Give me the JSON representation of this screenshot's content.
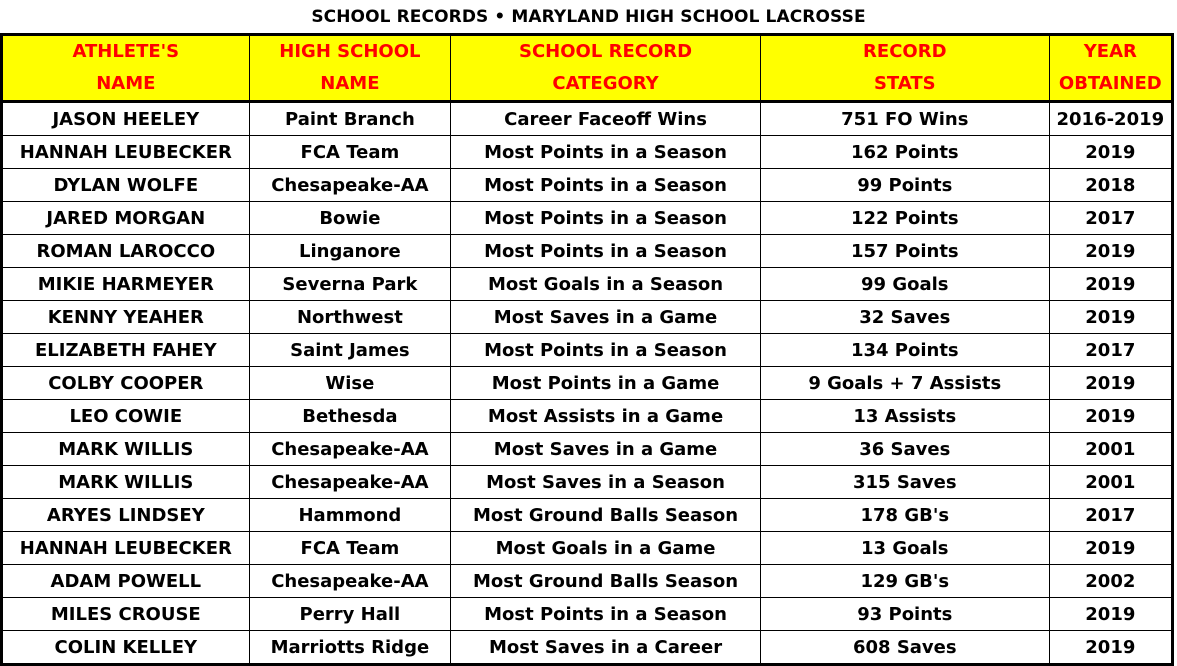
{
  "title": "SCHOOL RECORDS • MARYLAND HIGH SCHOOL LACROSSE",
  "colors": {
    "header_bg": "#ffff00",
    "header_text": "#ff0000",
    "body_text": "#000000"
  },
  "headers": [
    {
      "line1": "ATHLETE'S",
      "line2": "NAME"
    },
    {
      "line1": "HIGH SCHOOL",
      "line2": "NAME"
    },
    {
      "line1": "SCHOOL RECORD",
      "line2": "CATEGORY"
    },
    {
      "line1": "RECORD",
      "line2": "STATS"
    },
    {
      "line1": "YEAR",
      "line2": "OBTAINED"
    }
  ],
  "rows": [
    {
      "name": "JASON HEELEY",
      "school": "Paint Branch",
      "category": "Career Faceoff Wins",
      "stats": "751 FO Wins",
      "year": "2016-2019"
    },
    {
      "name": "HANNAH LEUBECKER",
      "school": "FCA Team",
      "category": "Most Points in a Season",
      "stats": "162 Points",
      "year": "2019"
    },
    {
      "name": "DYLAN WOLFE",
      "school": "Chesapeake-AA",
      "category": "Most Points in a Season",
      "stats": "99 Points",
      "year": "2018"
    },
    {
      "name": "JARED MORGAN",
      "school": "Bowie",
      "category": "Most Points in a Season",
      "stats": "122 Points",
      "year": "2017"
    },
    {
      "name": "ROMAN LAROCCO",
      "school": "Linganore",
      "category": "Most Points in a Season",
      "stats": "157 Points",
      "year": "2019"
    },
    {
      "name": "MIKIE HARMEYER",
      "school": "Severna Park",
      "category": "Most Goals in a Season",
      "stats": "99 Goals",
      "year": "2019"
    },
    {
      "name": "KENNY YEAHER",
      "school": "Northwest",
      "category": "Most Saves in a Game",
      "stats": "32 Saves",
      "year": "2019"
    },
    {
      "name": "ELIZABETH FAHEY",
      "school": "Saint James",
      "category": "Most Points in a Season",
      "stats": "134 Points",
      "year": "2017"
    },
    {
      "name": "COLBY COOPER",
      "school": "Wise",
      "category": "Most Points in a Game",
      "stats": "9 Goals + 7 Assists",
      "year": "2019"
    },
    {
      "name": "LEO COWIE",
      "school": "Bethesda",
      "category": "Most Assists in a Game",
      "stats": "13 Assists",
      "year": "2019"
    },
    {
      "name": "MARK WILLIS",
      "school": "Chesapeake-AA",
      "category": "Most Saves in a Game",
      "stats": "36 Saves",
      "year": "2001"
    },
    {
      "name": "MARK WILLIS",
      "school": "Chesapeake-AA",
      "category": "Most Saves in a Season",
      "stats": "315 Saves",
      "year": "2001"
    },
    {
      "name": "ARYES LINDSEY",
      "school": "Hammond",
      "category": "Most Ground Balls Season",
      "stats": "178 GB's",
      "year": "2017"
    },
    {
      "name": "HANNAH LEUBECKER",
      "school": "FCA Team",
      "category": "Most Goals in a Game",
      "stats": "13 Goals",
      "year": "2019"
    },
    {
      "name": "ADAM POWELL",
      "school": "Chesapeake-AA",
      "category": "Most Ground Balls Season",
      "stats": "129 GB's",
      "year": "2002"
    },
    {
      "name": "MILES CROUSE",
      "school": "Perry Hall",
      "category": "Most Points in a Season",
      "stats": "93 Points",
      "year": "2019"
    },
    {
      "name": "COLIN KELLEY",
      "school": "Marriotts Ridge",
      "category": "Most Saves in a Career",
      "stats": "608 Saves",
      "year": "2019"
    }
  ]
}
